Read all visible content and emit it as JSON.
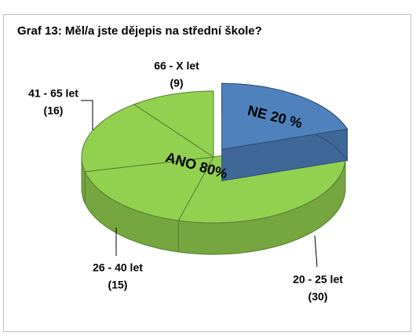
{
  "chart_data": {
    "type": "pie3d",
    "title": "Graf 13: Měl/a jste dějepis na střední škole?",
    "slices": [
      {
        "label": "NE 20 %",
        "value": 20,
        "color": "#4f81bd",
        "exploded": true
      },
      {
        "label": "ANO 80%",
        "value": 80,
        "color": "#92d050",
        "parts": {
          "categories": [
            "20 - 25 let",
            "26 - 40 let",
            "41 - 65 let",
            "66 - X let"
          ],
          "values": [
            30,
            15,
            16,
            9
          ],
          "value_labels": [
            "(30)",
            "(15)",
            "(16)",
            "(9)"
          ]
        }
      }
    ]
  }
}
